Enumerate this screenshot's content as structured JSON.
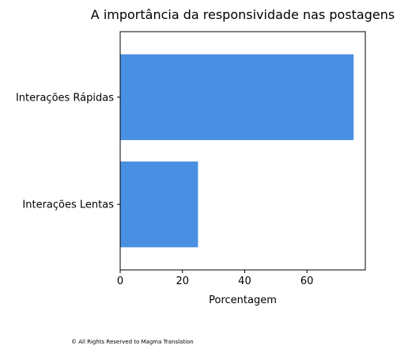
{
  "chart_data": {
    "type": "bar",
    "orientation": "horizontal",
    "title": "A importância da responsividade nas postagens",
    "xlabel": "Porcentagem",
    "ylabel": "",
    "categories": [
      "Interações Rápidas",
      "Interações Lentas"
    ],
    "values": [
      75,
      25
    ],
    "xlim": [
      0,
      78.75
    ],
    "xticks": [
      0,
      20,
      40,
      60
    ],
    "bar_color": "#4a90e2",
    "grid": false,
    "legend": "none"
  },
  "footer": {
    "text": "© All Rights Reserved to Magma Translation"
  }
}
